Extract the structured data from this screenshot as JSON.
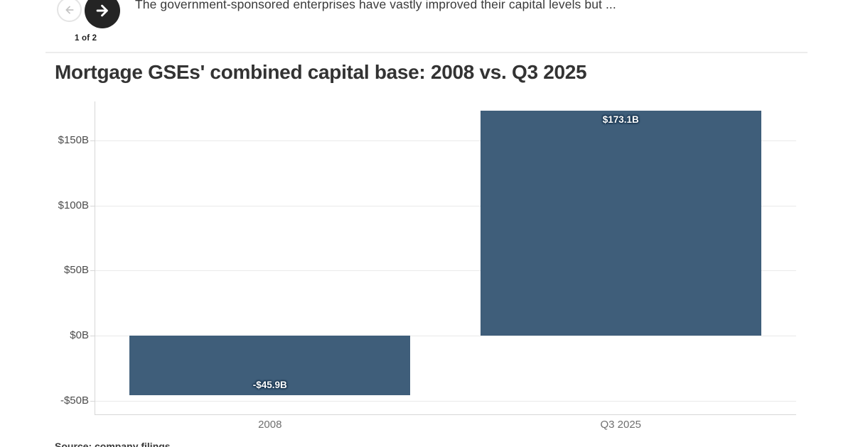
{
  "header": {
    "pagination": "1 of 2",
    "caption": "The government-sponsored enterprises have vastly improved their capital levels but ..."
  },
  "title": "Mortgage GSEs' combined capital base: 2008 vs. Q3 2025",
  "footer": {
    "source_text": "Source: company filings"
  },
  "colors": {
    "bar": "#3F5E7A",
    "nav_button_active": "#242424",
    "nav_arrow_disabled": "#c4c4c4"
  },
  "chart_data": {
    "type": "bar",
    "title": "Mortgage GSEs' combined capital base: 2008 vs. Q3 2025",
    "categories": [
      "2008",
      "Q3 2025"
    ],
    "values": [
      -45.9,
      173.1
    ],
    "value_labels": [
      "-$45.9B",
      "$173.1B"
    ],
    "unit": "USD billions",
    "ylabel": "",
    "xlabel": "",
    "ylim": [
      -60,
      180
    ],
    "grid": true,
    "legend": "none",
    "y_ticks": [
      {
        "value": 150,
        "label": "$150B"
      },
      {
        "value": 100,
        "label": "$100B"
      },
      {
        "value": 50,
        "label": "$50B"
      },
      {
        "value": 0,
        "label": "$0B"
      },
      {
        "value": -50,
        "label": "-$50B"
      }
    ]
  }
}
